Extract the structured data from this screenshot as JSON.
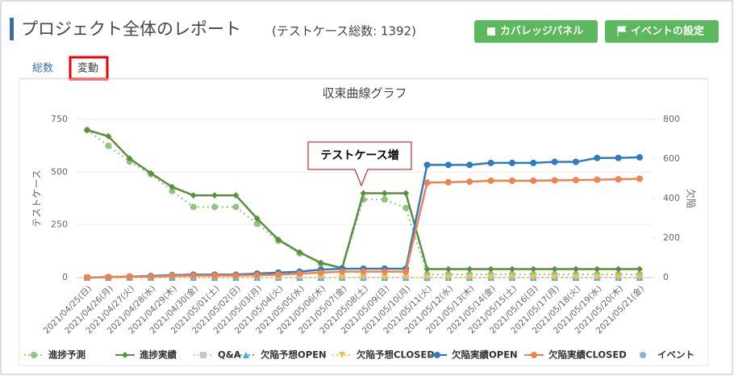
{
  "header": {
    "title": "プロジェクト全体のレポート",
    "subtitle": "(テストケース総数: 1392)",
    "buttons": [
      "カバレッジパネル",
      "イベントの設定"
    ]
  },
  "tabs": [
    "総数",
    "変動"
  ],
  "chart_data": {
    "type": "line",
    "title": "収束曲線グラフ",
    "y_label": "テストケース",
    "y2_label": "欠陥",
    "annotation": "テストケース増",
    "categories": [
      "2021/04/25(日)",
      "2021/04/26(月)",
      "2021/04/27(火)",
      "2021/04/28(水)",
      "2021/04/29(木)",
      "2021/04/30(金)",
      "2021/05/01(土)",
      "2021/05/02(日)",
      "2021/05/03(月)",
      "2021/05/04(火)",
      "2021/05/05(水)",
      "2021/05/06(木)",
      "2021/05/07(金)",
      "2021/05/08(土)",
      "2021/05/09(日)",
      "2021/05/10(月)",
      "2021/05/11(火)",
      "2021/05/12(水)",
      "2021/05/13(木)",
      "2021/05/14(金)",
      "2021/05/15(土)",
      "2021/05/16(日)",
      "2021/05/17(月)",
      "2021/05/18(火)",
      "2021/05/19(水)",
      "2021/05/20(木)",
      "2021/05/21(金)"
    ],
    "ylim": [
      0,
      750
    ],
    "yticks": [
      0,
      250,
      500,
      750
    ],
    "y2lim": [
      0,
      800
    ],
    "y2ticks": [
      0,
      200,
      400,
      600,
      800
    ],
    "grid": true,
    "series": [
      {
        "name": "進捗予測",
        "color": "#8fc47a",
        "dash": true,
        "marker": "circle",
        "values": [
          700,
          625,
          550,
          490,
          410,
          335,
          335,
          335,
          255,
          175,
          115,
          65,
          45,
          370,
          370,
          330,
          15,
          15,
          15,
          15,
          15,
          15,
          15,
          15,
          15,
          15,
          15
        ]
      },
      {
        "name": "進捗実績",
        "color": "#5a8f3c",
        "marker": "diamond",
        "values": [
          700,
          670,
          565,
          495,
          430,
          390,
          390,
          390,
          280,
          180,
          120,
          70,
          45,
          400,
          400,
          400,
          40,
          40,
          40,
          40,
          40,
          40,
          40,
          40,
          40,
          40,
          40
        ]
      },
      {
        "name": "Q&A",
        "color": "#c0c8d0",
        "dash": true,
        "marker": "square",
        "values": [
          0,
          0,
          0,
          0,
          0,
          0,
          0,
          0,
          0,
          0,
          0,
          0,
          0,
          0,
          0,
          0,
          0,
          0,
          0,
          0,
          0,
          0,
          0,
          0,
          0,
          0,
          0
        ]
      },
      {
        "name": "欠陥予想OPEN",
        "color": "#3bb0e8",
        "dash": true,
        "marker": "triangle",
        "axis": "y2",
        "values": [
          0,
          0,
          0,
          0,
          0,
          0,
          0,
          0,
          0,
          0,
          0,
          0,
          0,
          0,
          0,
          0,
          0,
          0,
          0,
          0,
          0,
          0,
          0,
          0,
          0,
          0,
          0
        ]
      },
      {
        "name": "欠陥予想CLOSED",
        "color": "#f5c04a",
        "dash": true,
        "marker": "down",
        "axis": "y2",
        "values": [
          0,
          0,
          0,
          0,
          0,
          0,
          0,
          0,
          0,
          0,
          0,
          0,
          0,
          0,
          0,
          0,
          0,
          0,
          0,
          0,
          0,
          0,
          0,
          0,
          0,
          0,
          0
        ]
      },
      {
        "name": "欠陥実績OPEN",
        "color": "#2f7bbf",
        "marker": "circle",
        "axis": "y2",
        "values": [
          0,
          2,
          5,
          8,
          12,
          15,
          15,
          15,
          20,
          25,
          30,
          40,
          45,
          45,
          45,
          45,
          570,
          570,
          570,
          580,
          580,
          580,
          585,
          585,
          605,
          605,
          608
        ]
      },
      {
        "name": "欠陥実績CLOSED",
        "color": "#ef8350",
        "marker": "circle",
        "axis": "y2",
        "values": [
          0,
          2,
          5,
          5,
          8,
          10,
          10,
          10,
          12,
          15,
          20,
          25,
          30,
          30,
          30,
          30,
          480,
          482,
          485,
          490,
          490,
          490,
          492,
          493,
          495,
          497,
          500
        ]
      },
      {
        "name": "イベント",
        "color": "#7fb3e8",
        "marker": "circle",
        "values": [
          null,
          null,
          null,
          null,
          null,
          null,
          null,
          null,
          null,
          null,
          null,
          null,
          null,
          null,
          null,
          null,
          null,
          null,
          null,
          null,
          null,
          null,
          null,
          null,
          null,
          null,
          null
        ]
      }
    ]
  }
}
